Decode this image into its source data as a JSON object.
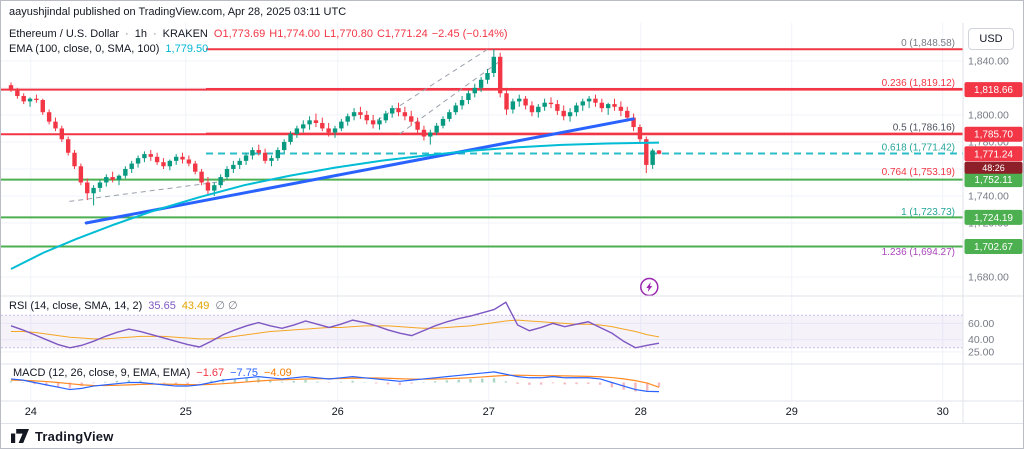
{
  "attribution": "aayushjindal published on TradingView.com, Apr 28, 2025 03:11 UTC",
  "header": {
    "symbol": "Ethereum / U.S. Dollar",
    "sep": "·",
    "interval": "1h",
    "exchange": "KRAKEN",
    "o": "O1,773.69",
    "h": "H1,774.00",
    "l": "L1,770.80",
    "c": "C1,771.24",
    "change": "−2.45 (−0.14%)"
  },
  "ema_legend": {
    "name": "EMA (100, close, 0, SMA, 100)",
    "value": "1,779.50"
  },
  "rsi_legend": {
    "name": "RSI (14, close, SMA, 14, 2)",
    "v1": "35.65",
    "v2": "43.49",
    "extra": "∅ ∅"
  },
  "macd_legend": {
    "name": "MACD (12, 26, close, 9, EMA, EMA)",
    "v1": "−1.67",
    "v2": "−7.75",
    "v3": "−4.09"
  },
  "axis": {
    "currency": "USD"
  },
  "footer": {
    "brand": "TradingView"
  },
  "colors": {
    "up": "#089981",
    "down": "#f23645",
    "red_line": "#f23645",
    "green_line": "#4caf50",
    "teal_dashed": "#2bbcc9",
    "trend_blue": "#2962ff",
    "ema_cyan": "#00bcd4",
    "rsi_purple": "#7e57c2",
    "rsi_ma_yellow": "#f5a623",
    "macd_blue": "#2962ff",
    "macd_signal_orange": "#ff8a25"
  },
  "chart_data": {
    "type": "candlestick",
    "symbol": "Ethereum / U.S. Dollar",
    "interval": "1h",
    "exchange": "KRAKEN",
    "price_pane_range": [
      1666,
      1868
    ],
    "price_ticks": [
      {
        "value": 1840,
        "label": "1,840.00"
      },
      {
        "value": 1820,
        "label": "1,820.00"
      },
      {
        "value": 1800,
        "label": "1,800.00"
      },
      {
        "value": 1780,
        "label": "1,780.00"
      },
      {
        "value": 1760,
        "label": "1,760.00"
      },
      {
        "value": 1740,
        "label": "1,740.00"
      },
      {
        "value": 1720,
        "label": "1,720.00"
      },
      {
        "value": 1680,
        "label": "1,680.00"
      }
    ],
    "time_ticks": [
      {
        "label": "24",
        "f": 0.031
      },
      {
        "label": "25",
        "f": 0.192
      },
      {
        "label": "26",
        "f": 0.35
      },
      {
        "label": "27",
        "f": 0.507
      },
      {
        "label": "28",
        "f": 0.665
      },
      {
        "label": "29",
        "f": 0.822
      },
      {
        "label": "30",
        "f": 0.979
      }
    ],
    "candles": [
      [
        1822,
        1824,
        1817,
        1818
      ],
      [
        1818,
        1820,
        1812,
        1814
      ],
      [
        1814,
        1816,
        1808,
        1810
      ],
      [
        1810,
        1813,
        1806,
        1812
      ],
      [
        1812,
        1815,
        1809,
        1811
      ],
      [
        1811,
        1812,
        1800,
        1802
      ],
      [
        1802,
        1804,
        1793,
        1795
      ],
      [
        1795,
        1798,
        1788,
        1790
      ],
      [
        1790,
        1792,
        1780,
        1782
      ],
      [
        1782,
        1784,
        1770,
        1772
      ],
      [
        1772,
        1774,
        1760,
        1762
      ],
      [
        1762,
        1764,
        1748,
        1750
      ],
      [
        1750,
        1753,
        1737,
        1742
      ],
      [
        1742,
        1748,
        1733,
        1746
      ],
      [
        1746,
        1752,
        1743,
        1750
      ],
      [
        1750,
        1756,
        1747,
        1754
      ],
      [
        1754,
        1758,
        1750,
        1752
      ],
      [
        1752,
        1756,
        1748,
        1755
      ],
      [
        1755,
        1762,
        1753,
        1760
      ],
      [
        1760,
        1766,
        1757,
        1764
      ],
      [
        1764,
        1770,
        1761,
        1768
      ],
      [
        1768,
        1773,
        1765,
        1771
      ],
      [
        1771,
        1774,
        1766,
        1769
      ],
      [
        1769,
        1772,
        1763,
        1765
      ],
      [
        1765,
        1768,
        1760,
        1762
      ],
      [
        1762,
        1767,
        1759,
        1766
      ],
      [
        1766,
        1771,
        1763,
        1769
      ],
      [
        1769,
        1772,
        1764,
        1767
      ],
      [
        1767,
        1770,
        1762,
        1764
      ],
      [
        1764,
        1766,
        1756,
        1758
      ],
      [
        1758,
        1760,
        1748,
        1750
      ],
      [
        1750,
        1754,
        1741,
        1744
      ],
      [
        1744,
        1750,
        1740,
        1748
      ],
      [
        1748,
        1756,
        1746,
        1754
      ],
      [
        1754,
        1762,
        1752,
        1760
      ],
      [
        1760,
        1766,
        1757,
        1763
      ],
      [
        1763,
        1768,
        1760,
        1766
      ],
      [
        1766,
        1772,
        1763,
        1770
      ],
      [
        1770,
        1776,
        1767,
        1774
      ],
      [
        1774,
        1778,
        1770,
        1772
      ],
      [
        1772,
        1775,
        1764,
        1766
      ],
      [
        1766,
        1770,
        1762,
        1768
      ],
      [
        1768,
        1776,
        1766,
        1774
      ],
      [
        1774,
        1782,
        1772,
        1780
      ],
      [
        1780,
        1788,
        1778,
        1786
      ],
      [
        1786,
        1792,
        1783,
        1790
      ],
      [
        1790,
        1796,
        1787,
        1793
      ],
      [
        1793,
        1799,
        1789,
        1796
      ],
      [
        1796,
        1801,
        1791,
        1794
      ],
      [
        1794,
        1798,
        1788,
        1790
      ],
      [
        1790,
        1794,
        1784,
        1787
      ],
      [
        1787,
        1792,
        1783,
        1790
      ],
      [
        1790,
        1797,
        1788,
        1795
      ],
      [
        1795,
        1801,
        1792,
        1799
      ],
      [
        1799,
        1805,
        1796,
        1802
      ],
      [
        1802,
        1806,
        1797,
        1800
      ],
      [
        1800,
        1803,
        1793,
        1796
      ],
      [
        1796,
        1800,
        1790,
        1793
      ],
      [
        1793,
        1798,
        1789,
        1796
      ],
      [
        1796,
        1803,
        1794,
        1801
      ],
      [
        1801,
        1807,
        1798,
        1805
      ],
      [
        1805,
        1809,
        1799,
        1802
      ],
      [
        1802,
        1806,
        1796,
        1799
      ],
      [
        1799,
        1803,
        1792,
        1795
      ],
      [
        1795,
        1798,
        1786,
        1789
      ],
      [
        1789,
        1792,
        1781,
        1784
      ],
      [
        1784,
        1789,
        1778,
        1787
      ],
      [
        1787,
        1794,
        1785,
        1792
      ],
      [
        1792,
        1799,
        1790,
        1797
      ],
      [
        1797,
        1804,
        1795,
        1802
      ],
      [
        1802,
        1809,
        1800,
        1807
      ],
      [
        1807,
        1814,
        1804,
        1811
      ],
      [
        1811,
        1818,
        1808,
        1816
      ],
      [
        1816,
        1823,
        1813,
        1820
      ],
      [
        1820,
        1828,
        1817,
        1826
      ],
      [
        1826,
        1834,
        1823,
        1831
      ],
      [
        1831,
        1848.58,
        1828,
        1843
      ],
      [
        1843,
        1846,
        1813,
        1816
      ],
      [
        1816,
        1820,
        1800,
        1804
      ],
      [
        1804,
        1812,
        1801,
        1810
      ],
      [
        1810,
        1815,
        1806,
        1812
      ],
      [
        1812,
        1814,
        1804,
        1807
      ],
      [
        1807,
        1810,
        1799,
        1802
      ],
      [
        1802,
        1808,
        1798,
        1806
      ],
      [
        1806,
        1812,
        1803,
        1809
      ],
      [
        1809,
        1813,
        1805,
        1808
      ],
      [
        1808,
        1811,
        1800,
        1803
      ],
      [
        1803,
        1807,
        1796,
        1799
      ],
      [
        1799,
        1805,
        1795,
        1802
      ],
      [
        1802,
        1809,
        1799,
        1807
      ],
      [
        1807,
        1812,
        1803,
        1810
      ],
      [
        1810,
        1814,
        1805,
        1812
      ],
      [
        1812,
        1815,
        1806,
        1809
      ],
      [
        1809,
        1812,
        1802,
        1805
      ],
      [
        1805,
        1809,
        1800,
        1808
      ],
      [
        1808,
        1812,
        1803,
        1806
      ],
      [
        1806,
        1810,
        1799,
        1803
      ],
      [
        1803,
        1806,
        1795,
        1798
      ],
      [
        1798,
        1801,
        1788,
        1791
      ],
      [
        1791,
        1793,
        1779,
        1782
      ],
      [
        1782,
        1784,
        1757,
        1763
      ],
      [
        1763,
        1775,
        1760,
        1773.7
      ],
      [
        1773.69,
        1774,
        1770.8,
        1771.24
      ]
    ],
    "ema100": {
      "points": [
        [
          0,
          1686
        ],
        [
          0.05,
          1698
        ],
        [
          0.1,
          1708
        ],
        [
          0.16,
          1719
        ],
        [
          0.22,
          1729
        ],
        [
          0.29,
          1739
        ],
        [
          0.36,
          1748
        ],
        [
          0.43,
          1755
        ],
        [
          0.5,
          1761
        ],
        [
          0.57,
          1766
        ],
        [
          0.64,
          1770
        ],
        [
          0.71,
          1773.5
        ],
        [
          0.78,
          1776
        ],
        [
          0.85,
          1777.8
        ],
        [
          0.92,
          1778.8
        ],
        [
          1,
          1779.5
        ]
      ],
      "last_value": 1779.5
    },
    "trendline": {
      "f1": 0.116,
      "p1": 1720,
      "f2": 0.96,
      "p2": 1797,
      "color": "#2962ff"
    },
    "dashed_segments": [
      {
        "f1": 0.09,
        "p1": 1736,
        "f2": 0.33,
        "p2": 1751
      },
      {
        "f1": 0.565,
        "p1": 1796,
        "f2": 0.74,
        "p2": 1850
      },
      {
        "f1": 0.6,
        "p1": 1786,
        "f2": 0.755,
        "p2": 1840
      }
    ],
    "fib_levels": [
      {
        "label": "0 (1,848.58)",
        "price": 1848.58,
        "label_color": "#787b86",
        "line_color": "#f23645",
        "dashed": false
      },
      {
        "label": "0.236 (1,819.12)",
        "price": 1819.12,
        "label_color": "#f23645",
        "line_color": "#f23645",
        "dashed": false
      },
      {
        "label": "0.5 (1,786.16)",
        "price": 1786.16,
        "label_color": "#50535e",
        "line_color": "#f23645",
        "dashed": false
      },
      {
        "label": "0.618 (1,771.42)",
        "price": 1771.42,
        "label_color": "#26a69a",
        "line_color": "#2bbcc9",
        "dashed": true
      },
      {
        "label": "0.764 (1,753.19)",
        "price": 1753.19,
        "label_color": "#f23645",
        "line_color": null,
        "dashed": false
      },
      {
        "label": "1 (1,723.73)",
        "price": 1723.73,
        "label_color": "#26a69a",
        "line_color": null,
        "dashed": false
      },
      {
        "label": "1.236 (1,694.27)",
        "price": 1694.27,
        "label_color": "#ab47bc",
        "line_color": null,
        "dashed": false
      }
    ],
    "horizontal_lines": [
      {
        "price": 1818.66,
        "tag": "1,818.66",
        "color": "#f23645"
      },
      {
        "price": 1785.7,
        "tag": "1,785.70",
        "color": "#f23645"
      },
      {
        "price": 1752.11,
        "tag": "1,752.11",
        "color": "#4caf50"
      },
      {
        "price": 1724.19,
        "tag": "1,724.19",
        "color": "#4caf50"
      },
      {
        "price": 1702.67,
        "tag": "1,702.67",
        "color": "#4caf50"
      }
    ],
    "last_price": {
      "value": 1771.24,
      "tag": "1,771.24",
      "countdown": "48:26",
      "color": "#f23645"
    },
    "rsi": {
      "range": [
        15,
        90
      ],
      "upper": 70,
      "lower": 30,
      "ticks": [
        {
          "value": 60,
          "label": "60.00"
        },
        {
          "value": 40,
          "label": "40.00"
        },
        {
          "value": 25,
          "label": "25.00"
        }
      ],
      "values": [
        57,
        52,
        46,
        40,
        34,
        30,
        33,
        38,
        44,
        49,
        53,
        50,
        46,
        42,
        38,
        34,
        31,
        38,
        46,
        52,
        57,
        61,
        57,
        54,
        58,
        63,
        59,
        55,
        59,
        64,
        61,
        57,
        52,
        48,
        45,
        51,
        57,
        62,
        66,
        69,
        73,
        77,
        86,
        58,
        51,
        55,
        60,
        56,
        59,
        62,
        55,
        48,
        38,
        30,
        33,
        35.65
      ],
      "ma": [
        50,
        50,
        49,
        47,
        45,
        43,
        42,
        41,
        41,
        42,
        43,
        44,
        44,
        44,
        43,
        42,
        41,
        41,
        42,
        44,
        46,
        48,
        50,
        51,
        52,
        53,
        54,
        55,
        55,
        56,
        57,
        57,
        57,
        56,
        55,
        54,
        54,
        55,
        56,
        57,
        59,
        61,
        63,
        64,
        63,
        62,
        61,
        60,
        59,
        59,
        58,
        56,
        53,
        50,
        46,
        43.49
      ],
      "current": 35.65,
      "current_ma": 43.49
    },
    "macd": {
      "range": [
        -14,
        14
      ],
      "macd": [
        3,
        2,
        0,
        -2,
        -4,
        -6,
        -5,
        -3,
        -2,
        -1,
        0,
        0,
        -1,
        -2,
        -3,
        -3,
        -2,
        0,
        2,
        3,
        4,
        5,
        4,
        3,
        4,
        5,
        4,
        3,
        4,
        5,
        4,
        3,
        2,
        1,
        2,
        3,
        4,
        5,
        6,
        7,
        8,
        9,
        7,
        5,
        4,
        4,
        5,
        4,
        4,
        4,
        3,
        0,
        -3,
        -6,
        -7.5,
        -7.75
      ],
      "signal": [
        2,
        1.8,
        1.4,
        0.8,
        0,
        -1,
        -2,
        -2.5,
        -2.6,
        -2.4,
        -2,
        -1.6,
        -1.4,
        -1.4,
        -1.6,
        -1.8,
        -1.9,
        -1.6,
        -1,
        -0.3,
        0.5,
        1.3,
        1.9,
        2.3,
        2.6,
        3,
        3.2,
        3.3,
        3.4,
        3.6,
        3.8,
        3.8,
        3.6,
        3.2,
        2.9,
        2.8,
        2.9,
        3.2,
        3.6,
        4.1,
        4.7,
        5.4,
        6,
        6.2,
        6,
        5.8,
        5.7,
        5.6,
        5.4,
        5.2,
        4.9,
        4.2,
        3.1,
        1.6,
        -0.5,
        -4.09
      ],
      "current_hist": -1.67,
      "current_macd": -7.75,
      "current_signal": -4.09
    }
  }
}
